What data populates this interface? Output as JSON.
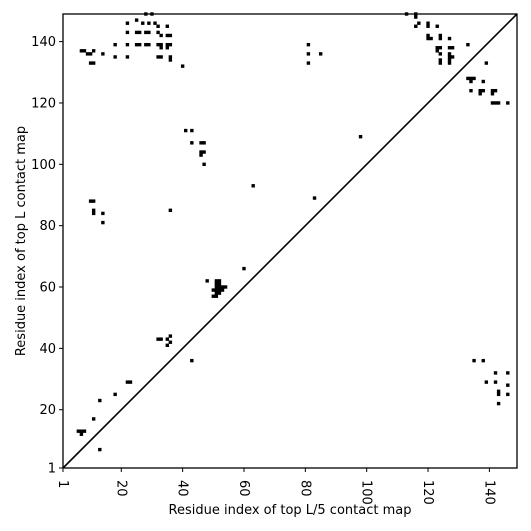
{
  "chart_data": {
    "type": "scatter",
    "title": "",
    "xlabel": "Residue index of top L/5 contact map",
    "ylabel": "Residue index of top L contact map",
    "xlim": [
      1,
      149
    ],
    "ylim": [
      1,
      149
    ],
    "x_ticks": [
      1,
      20,
      40,
      60,
      80,
      100,
      120,
      140
    ],
    "y_ticks": [
      1,
      20,
      40,
      60,
      80,
      100,
      120,
      140
    ],
    "diagonal_line": true,
    "grid": false,
    "marker": "square",
    "marker_color": "#000000",
    "series": [
      {
        "points": [
          [
            7,
            137
          ],
          [
            8,
            137
          ],
          [
            9,
            136
          ],
          [
            10,
            136
          ],
          [
            11,
            137
          ],
          [
            10,
            133
          ],
          [
            11,
            133
          ],
          [
            14,
            136
          ],
          [
            18,
            139
          ],
          [
            18,
            135
          ],
          [
            22,
            139
          ],
          [
            22,
            143
          ],
          [
            22,
            146
          ],
          [
            22,
            135
          ],
          [
            25,
            147
          ],
          [
            25,
            143
          ],
          [
            26,
            143
          ],
          [
            25,
            139
          ],
          [
            26,
            139
          ],
          [
            27,
            146
          ],
          [
            28,
            143
          ],
          [
            29,
            143
          ],
          [
            28,
            139
          ],
          [
            29,
            139
          ],
          [
            28,
            149
          ],
          [
            29,
            146
          ],
          [
            30,
            149
          ],
          [
            31,
            146
          ],
          [
            32,
            145
          ],
          [
            32,
            143
          ],
          [
            32,
            139
          ],
          [
            33,
            139
          ],
          [
            33,
            138
          ],
          [
            32,
            135
          ],
          [
            33,
            135
          ],
          [
            33,
            142
          ],
          [
            35,
            145
          ],
          [
            35,
            142
          ],
          [
            36,
            142
          ],
          [
            35,
            139
          ],
          [
            36,
            139
          ],
          [
            35,
            138
          ],
          [
            36,
            135
          ],
          [
            36,
            134
          ],
          [
            40,
            132
          ],
          [
            41,
            111
          ],
          [
            43,
            111
          ],
          [
            43,
            107
          ],
          [
            46,
            107
          ],
          [
            47,
            107
          ],
          [
            46,
            104
          ],
          [
            47,
            104
          ],
          [
            46,
            103
          ],
          [
            47,
            100
          ],
          [
            36,
            85
          ],
          [
            10,
            88
          ],
          [
            11,
            88
          ],
          [
            11,
            85
          ],
          [
            11,
            84
          ],
          [
            14,
            84
          ],
          [
            14,
            81
          ],
          [
            32,
            43
          ],
          [
            33,
            43
          ],
          [
            35,
            43
          ],
          [
            36,
            44
          ],
          [
            36,
            42
          ],
          [
            35,
            41
          ],
          [
            43,
            36
          ],
          [
            48,
            62
          ],
          [
            51,
            62
          ],
          [
            52,
            62
          ],
          [
            51,
            61
          ],
          [
            52,
            61
          ],
          [
            51,
            60
          ],
          [
            52,
            60
          ],
          [
            53,
            60
          ],
          [
            54,
            60
          ],
          [
            50,
            59
          ],
          [
            51,
            59
          ],
          [
            52,
            59
          ],
          [
            53,
            59
          ],
          [
            51,
            58
          ],
          [
            52,
            58
          ],
          [
            50,
            57
          ],
          [
            51,
            57
          ],
          [
            60,
            66
          ],
          [
            63,
            93
          ],
          [
            83,
            89
          ],
          [
            81,
            139
          ],
          [
            81,
            136
          ],
          [
            81,
            133
          ],
          [
            85,
            136
          ],
          [
            98,
            109
          ],
          [
            113,
            149
          ],
          [
            116,
            149
          ],
          [
            116,
            148
          ],
          [
            117,
            146
          ],
          [
            116,
            145
          ],
          [
            120,
            146
          ],
          [
            120,
            145
          ],
          [
            120,
            142
          ],
          [
            120,
            141
          ],
          [
            121,
            141
          ],
          [
            123,
            145
          ],
          [
            124,
            142
          ],
          [
            124,
            141
          ],
          [
            123,
            138
          ],
          [
            124,
            138
          ],
          [
            123,
            137
          ],
          [
            124,
            136
          ],
          [
            124,
            134
          ],
          [
            124,
            133
          ],
          [
            127,
            141
          ],
          [
            127,
            138
          ],
          [
            128,
            138
          ],
          [
            127,
            136
          ],
          [
            127,
            135
          ],
          [
            128,
            135
          ],
          [
            127,
            134
          ],
          [
            127,
            133
          ],
          [
            133,
            139
          ],
          [
            133,
            128
          ],
          [
            134,
            128
          ],
          [
            135,
            128
          ],
          [
            134,
            127
          ],
          [
            134,
            124
          ],
          [
            137,
            124
          ],
          [
            138,
            124
          ],
          [
            137,
            123
          ],
          [
            138,
            127
          ],
          [
            139,
            133
          ],
          [
            141,
            124
          ],
          [
            142,
            124
          ],
          [
            141,
            123
          ],
          [
            141,
            120
          ],
          [
            142,
            120
          ],
          [
            143,
            120
          ],
          [
            146,
            120
          ],
          [
            6,
            13
          ],
          [
            7,
            13
          ],
          [
            8,
            13
          ],
          [
            7,
            12
          ],
          [
            11,
            17
          ],
          [
            13,
            23
          ],
          [
            13,
            7
          ],
          [
            18,
            25
          ],
          [
            22,
            29
          ],
          [
            23,
            29
          ],
          [
            135,
            36
          ],
          [
            138,
            36
          ],
          [
            139,
            29
          ],
          [
            142,
            32
          ],
          [
            142,
            29
          ],
          [
            143,
            26
          ],
          [
            143,
            25
          ],
          [
            143,
            22
          ],
          [
            146,
            32
          ],
          [
            146,
            28
          ],
          [
            146,
            25
          ]
        ]
      }
    ]
  }
}
